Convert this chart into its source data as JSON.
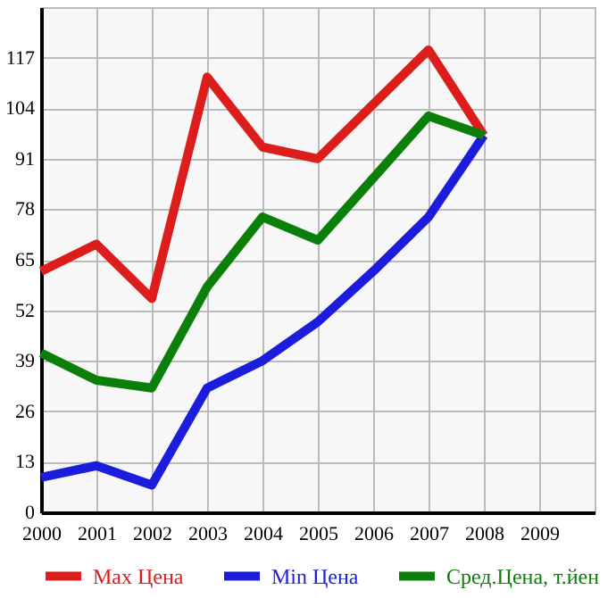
{
  "chart_data": {
    "type": "line",
    "x": [
      2000,
      2001,
      2002,
      2003,
      2004,
      2005,
      2006,
      2007,
      2008
    ],
    "series": [
      {
        "name": "Max Цена",
        "color": "#dd1c1c",
        "values": [
          62,
          69,
          55,
          112,
          94,
          91,
          105,
          119,
          97
        ]
      },
      {
        "name": "Min Цена",
        "color": "#1c1cdd",
        "values": [
          9,
          12,
          7,
          32,
          39,
          49,
          62,
          76,
          97
        ]
      },
      {
        "name": "Сред.Цена, т.йен",
        "color": "#0a800a",
        "values": [
          41,
          34,
          32,
          58,
          76,
          70,
          86,
          102,
          97
        ]
      }
    ],
    "xlim": [
      2000,
      2010
    ],
    "xticks": [
      2000,
      2001,
      2002,
      2003,
      2004,
      2005,
      2006,
      2007,
      2008,
      2009
    ],
    "ylim": [
      0,
      130
    ],
    "yticks": [
      0,
      13,
      26,
      39,
      52,
      65,
      78,
      91,
      104,
      117
    ],
    "grid": true,
    "legend": "bottom",
    "marker": "none",
    "line_style": "solid"
  }
}
